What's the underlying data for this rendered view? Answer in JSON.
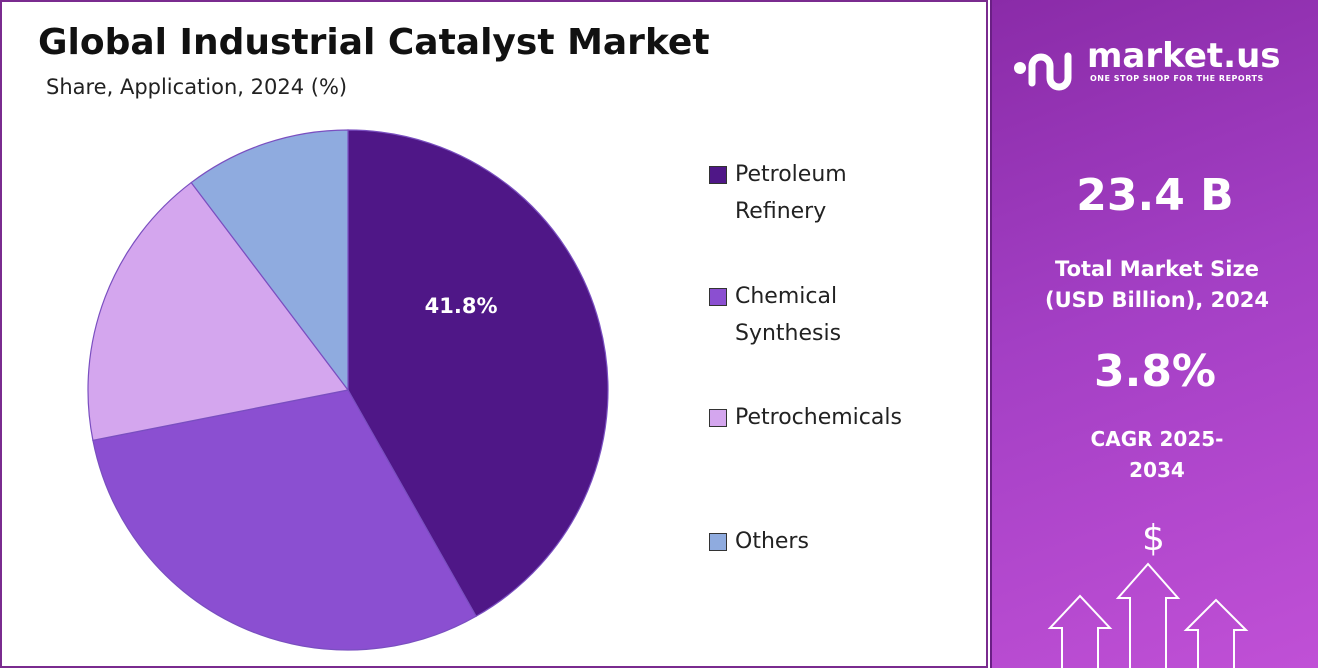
{
  "chart_data": {
    "type": "pie",
    "title": "Global Industrial Catalyst Market",
    "subtitle": "Share, Application, 2024 (%)",
    "categories": [
      "Petroleum Refinery",
      "Chemical Synthesis",
      "Petrochemicals",
      "Others"
    ],
    "values": [
      41.8,
      30.1,
      17.8,
      10.3
    ],
    "value_labels": [
      "41.8%",
      null,
      null,
      null
    ],
    "colors": [
      "#4f1787",
      "#8b4fd1",
      "#d4a6ee",
      "#8fabdf"
    ]
  },
  "panel": {
    "brand": "market.us",
    "tagline": "ONE STOP SHOP FOR THE REPORTS",
    "market_size": "23.4 B",
    "market_size_label": "Total Market Size (USD Billion), 2024",
    "cagr": "3.8%",
    "cagr_label": "CAGR 2025-2034",
    "icon": "$"
  }
}
